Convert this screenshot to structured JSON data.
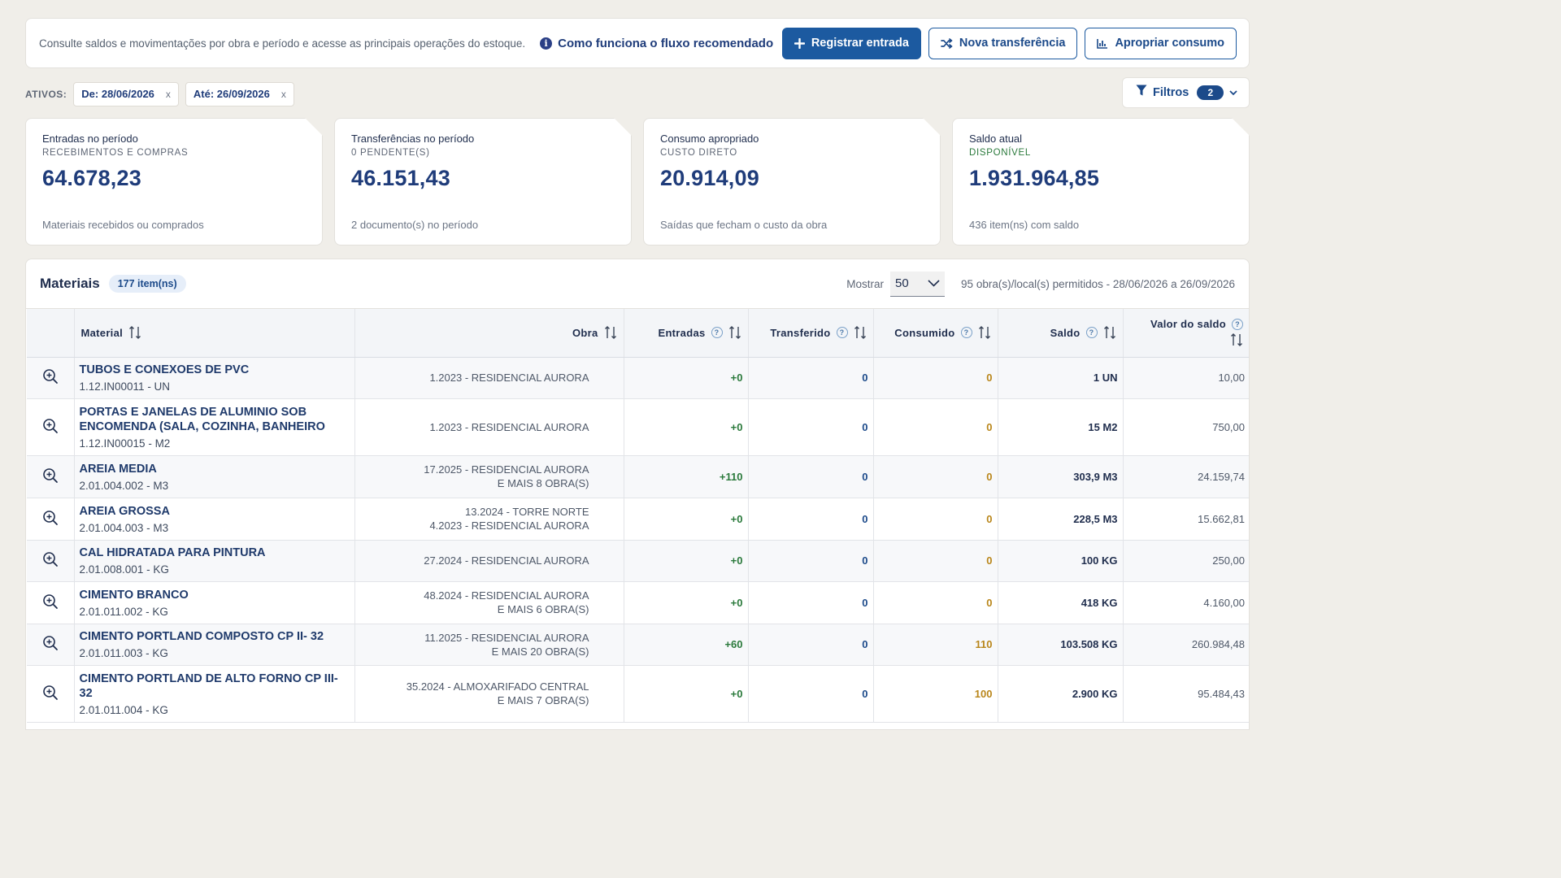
{
  "topbar": {
    "description": "Consulte saldos e movimentações por obra e período e acesse as principais operações do estoque.",
    "howto_label": "Como funciona o fluxo recomendado",
    "buttons": {
      "register": "Registrar entrada",
      "transfer": "Nova transferência",
      "consume": "Apropriar consumo"
    }
  },
  "filters": {
    "ativos_label": "ATIVOS:",
    "chips": [
      "De: 28/06/2026",
      "Até: 26/09/2026"
    ],
    "chip_remove": "x",
    "button_label": "Filtros",
    "count": "2"
  },
  "cards": [
    {
      "title": "Entradas no período",
      "subtitle": "RECEBIMENTOS E COMPRAS",
      "value": "64.678,23",
      "footer": "Materiais recebidos ou comprados"
    },
    {
      "title": "Transferências no período",
      "subtitle": "0 PENDENTE(S)",
      "value": "46.151,43",
      "footer": "2 documento(s) no período"
    },
    {
      "title": "Consumo apropriado",
      "subtitle": "CUSTO DIRETO",
      "value": "20.914,09",
      "footer": "Saídas que fecham o custo da obra"
    },
    {
      "title": "Saldo atual",
      "subtitle": "DISPONÍVEL",
      "value": "1.931.964,85",
      "footer": "436 item(ns) com saldo"
    }
  ],
  "colors": {
    "primary": "#1c5aa0",
    "navy": "#1f3c7a",
    "entrada": "#2b7a3c",
    "consumido": "#b9861a",
    "background": "#f0eee9"
  },
  "materials": {
    "title": "Materiais",
    "count_badge": "177 item(ns)",
    "show_label": "Mostrar",
    "page_size": "50",
    "permitted_text": "95 obra(s)/local(s) permitidos - 28/06/2026 a 26/09/2026",
    "columns": {
      "material": "Material",
      "obra": "Obra",
      "entradas": "Entradas",
      "transferido": "Transferido",
      "consumido": "Consumido",
      "saldo": "Saldo",
      "valor": "Valor do saldo"
    },
    "help_glyph": "?",
    "rows": [
      {
        "name": "TUBOS E CONEXOES DE PVC",
        "code": "1.12.IN00011 - UN",
        "obra1": "1.2023 - RESIDENCIAL AURORA",
        "obra2": "",
        "entradas": "+0",
        "transferido": "0",
        "consumido": "0",
        "saldo": "1 UN",
        "valor": "10,00"
      },
      {
        "name": "PORTAS E JANELAS DE ALUMINIO SOB ENCOMENDA (SALA, COZINHA, BANHEIRO",
        "code": "1.12.IN00015 - M2",
        "obra1": "1.2023 - RESIDENCIAL AURORA",
        "obra2": "",
        "entradas": "+0",
        "transferido": "0",
        "consumido": "0",
        "saldo": "15 M2",
        "valor": "750,00"
      },
      {
        "name": "AREIA MEDIA",
        "code": "2.01.004.002 - M3",
        "obra1": "17.2025 - RESIDENCIAL AURORA",
        "obra2": "E MAIS 8 OBRA(S)",
        "entradas": "+110",
        "transferido": "0",
        "consumido": "0",
        "saldo": "303,9 M3",
        "valor": "24.159,74"
      },
      {
        "name": "AREIA GROSSA",
        "code": "2.01.004.003 - M3",
        "obra1": "13.2024 - TORRE NORTE",
        "obra2": "4.2023 - RESIDENCIAL AURORA",
        "entradas": "+0",
        "transferido": "0",
        "consumido": "0",
        "saldo": "228,5 M3",
        "valor": "15.662,81"
      },
      {
        "name": "CAL HIDRATADA PARA PINTURA",
        "code": "2.01.008.001 - KG",
        "obra1": "27.2024 - RESIDENCIAL AURORA",
        "obra2": "",
        "entradas": "+0",
        "transferido": "0",
        "consumido": "0",
        "saldo": "100 KG",
        "valor": "250,00"
      },
      {
        "name": "CIMENTO BRANCO",
        "code": "2.01.011.002 - KG",
        "obra1": "48.2024 - RESIDENCIAL AURORA",
        "obra2": "E MAIS 6 OBRA(S)",
        "entradas": "+0",
        "transferido": "0",
        "consumido": "0",
        "saldo": "418 KG",
        "valor": "4.160,00"
      },
      {
        "name": "CIMENTO PORTLAND COMPOSTO CP II- 32",
        "code": "2.01.011.003 - KG",
        "obra1": "11.2025 - RESIDENCIAL AURORA",
        "obra2": "E MAIS 20 OBRA(S)",
        "entradas": "+60",
        "transferido": "0",
        "consumido": "110",
        "saldo": "103.508 KG",
        "valor": "260.984,48"
      },
      {
        "name": "CIMENTO PORTLAND DE ALTO FORNO CP III-32",
        "code": "2.01.011.004 - KG",
        "obra1": "35.2024 - ALMOXARIFADO CENTRAL",
        "obra2": "E MAIS 7 OBRA(S)",
        "entradas": "+0",
        "transferido": "0",
        "consumido": "100",
        "saldo": "2.900 KG",
        "valor": "95.484,43"
      }
    ]
  }
}
